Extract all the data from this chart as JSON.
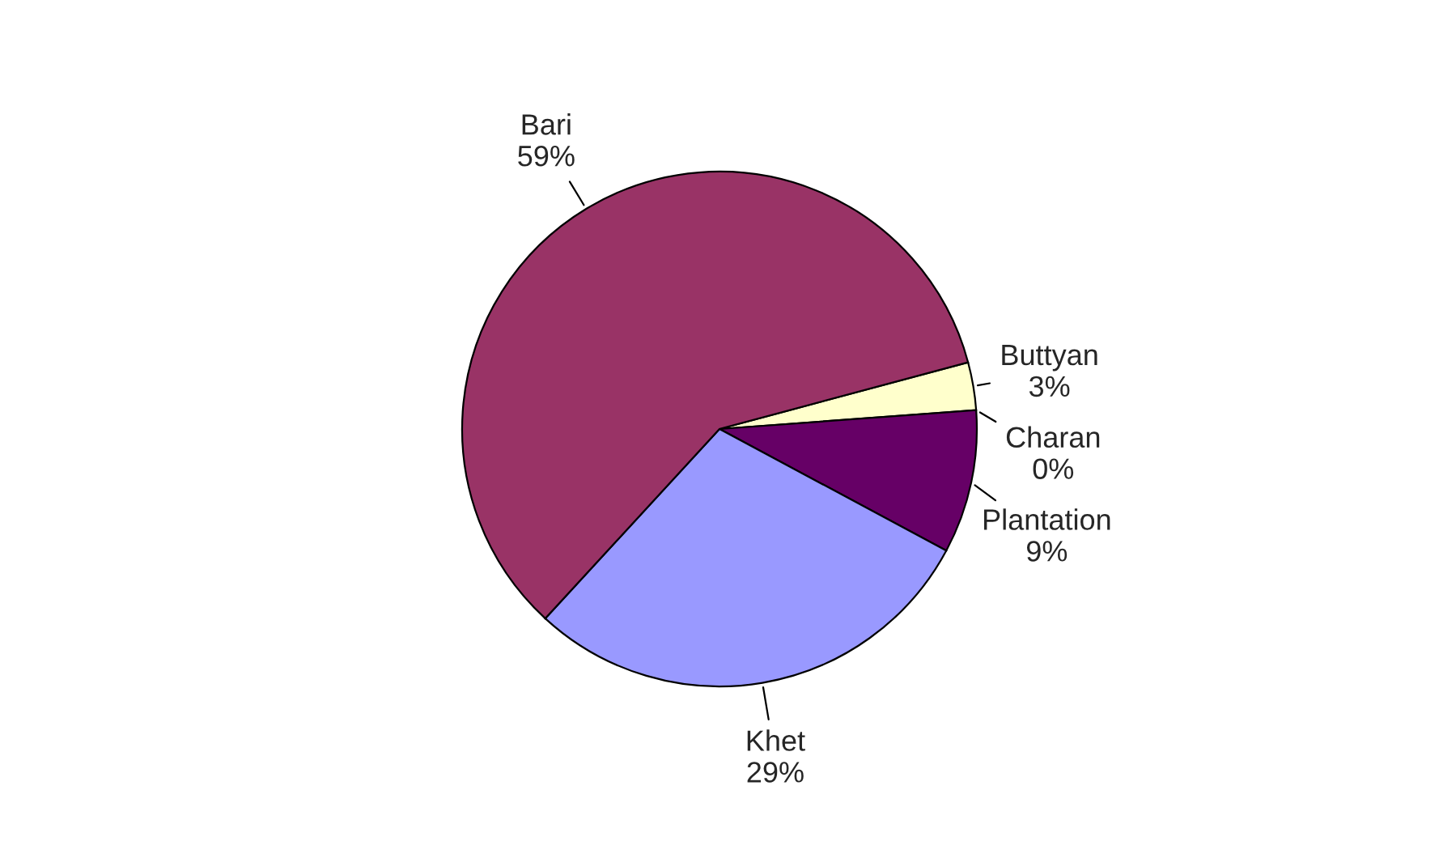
{
  "chart_data": {
    "type": "pie",
    "categories": [
      "Buttyan",
      "Charan",
      "Plantation",
      "Khet",
      "Bari"
    ],
    "values": [
      3,
      0,
      9,
      29,
      59
    ],
    "value_labels": [
      "3%",
      "0%",
      "9%",
      "29%",
      "59%"
    ],
    "colors": [
      "#ffffcc",
      "#ccffff",
      "#660066",
      "#9999ff",
      "#993366"
    ]
  }
}
